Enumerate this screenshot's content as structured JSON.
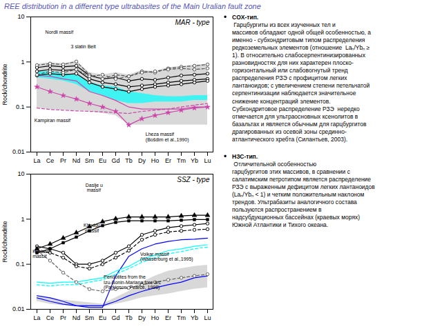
{
  "chart_data": [
    {
      "type": "line",
      "title": "MAR - type",
      "y_label": "Rock/chondrite",
      "categories": [
        "La",
        "Ce",
        "Pr",
        "Nd",
        "Sm",
        "Eu",
        "Gd",
        "Tb",
        "Dy",
        "Ho",
        "Er",
        "Tm",
        "Yb",
        "Lu"
      ],
      "log": "y",
      "ylim": [
        0.01,
        10
      ],
      "yticks": [
        0.01,
        0.1,
        1,
        10
      ],
      "grid": false,
      "annotations": [
        "Nordli massif",
        "3 slatin Belt",
        "Kampiran massif",
        "Lheza massif\n(Bošdim et al.,1990)"
      ],
      "series": [
        {
          "type": "area",
          "color": "#c8c8c8",
          "lower": [
            0.095,
            0.088,
            0.085,
            0.082,
            0.08,
            0.072,
            0.065,
            0.04,
            0.04,
            0.04,
            0.04,
            0.04,
            0.04,
            0.04
          ],
          "upper": [
            0.88,
            0.98,
            0.92,
            1.05,
            0.58,
            0.52,
            0.58,
            0.52,
            0.65,
            0.62,
            0.75,
            0.8,
            0.85,
            0.9
          ]
        },
        {
          "type": "area",
          "color": "cyan",
          "lower": [
            0.45,
            0.42,
            0.38,
            0.32,
            0.22,
            0.18,
            0.14,
            0.12,
            0.12,
            0.13,
            0.13,
            0.13,
            0.14,
            0.14
          ],
          "upper": [
            0.6,
            0.62,
            0.55,
            0.52,
            0.35,
            0.3,
            0.28,
            0.22,
            0.2,
            0.18,
            0.17,
            0.17,
            0.18,
            0.18
          ]
        },
        {
          "type": "line",
          "color": "#cc44aa",
          "line_style": "solid",
          "values": [
            0.5,
            0.48,
            0.42,
            0.38,
            0.22,
            0.18,
            0.14,
            0.1,
            0.09,
            0.09,
            0.09,
            0.09,
            0.1,
            0.1
          ]
        },
        {
          "type": "line",
          "color": "#cc44aa",
          "line_style": "dashed",
          "values": [
            0.095,
            0.088,
            0.085,
            0.082,
            0.08,
            0.078,
            0.075,
            0.072,
            0.08,
            0.085,
            0.09,
            0.1,
            0.11,
            0.12
          ]
        },
        {
          "type": "line",
          "color": "#cc44aa",
          "line_style": "solid",
          "marker": "star",
          "values": [
            0.28,
            0.22,
            0.18,
            0.15,
            0.12,
            0.1,
            0.08,
            0.04,
            0.055,
            0.065,
            0.075,
            0.085,
            0.095,
            0.1
          ]
        },
        {
          "type": "line",
          "color": "black",
          "line_style": "solid",
          "marker": "open_circle",
          "values": [
            0.75,
            0.82,
            0.78,
            0.82,
            0.5,
            0.42,
            0.45,
            0.38,
            0.42,
            0.4,
            0.45,
            0.5,
            0.52,
            0.55
          ]
        },
        {
          "type": "line",
          "color": "black",
          "line_style": "solid",
          "marker": "open_circle",
          "values": [
            0.62,
            0.68,
            0.65,
            0.68,
            0.42,
            0.35,
            0.32,
            0.28,
            0.3,
            0.32,
            0.35,
            0.38,
            0.4,
            0.42
          ]
        },
        {
          "type": "line",
          "color": "black",
          "line_style": "solid",
          "marker": "open_circle",
          "values": [
            0.5,
            0.55,
            0.52,
            0.55,
            0.35,
            0.28,
            0.25,
            0.22,
            0.25,
            0.28,
            0.3,
            0.32,
            0.35,
            0.38
          ]
        },
        {
          "type": "line",
          "color": "#555555",
          "line_style": "dashed",
          "marker": "open_circle",
          "values": [
            0.85,
            0.92,
            0.88,
            1.02,
            0.52,
            0.42,
            0.52,
            0.48,
            0.62,
            0.58,
            0.72,
            0.78,
            0.82,
            0.88
          ]
        },
        {
          "type": "line",
          "color": "#555555",
          "line_style": "dashed",
          "marker": "open_circle",
          "values": [
            0.52,
            0.62,
            0.58,
            0.68,
            0.48,
            0.52,
            0.42,
            0.48,
            0.58,
            0.62,
            0.68,
            0.72,
            0.68,
            0.72
          ]
        }
      ]
    },
    {
      "type": "line",
      "title": "SSZ - type",
      "y_label": "Rock/chondrite",
      "categories": [
        "La",
        "Ce",
        "Pr",
        "Nd",
        "Sm",
        "Eu",
        "Gd",
        "Tb",
        "Dy",
        "Ho",
        "Er",
        "Tm",
        "Yb",
        "Lu"
      ],
      "log": "y",
      "ylim": [
        0.01,
        10
      ],
      "yticks": [
        0.01,
        0.1,
        1,
        10
      ],
      "grid": false,
      "annotations": [
        "Daslje u\n massif",
        "Khodgu\n massif",
        "Khabarn\nmassif",
        "Voikar massif\n(Wasserburg et al.,1995)",
        "Peridotites from the\nIzu-Bonin-Mariana fore arc\n(Parkinson, Pearce, 1998)"
      ],
      "series": [
        {
          "type": "area",
          "color": "#c8c8c8",
          "lower": [
            0.015,
            0.013,
            0.012,
            0.012,
            0.011,
            0.011,
            0.013,
            0.015,
            0.018,
            0.02,
            0.022,
            0.025,
            0.028,
            0.03
          ],
          "upper": [
            0.018,
            0.018,
            0.016,
            0.015,
            0.014,
            0.013,
            0.018,
            0.025,
            0.04,
            0.055,
            0.07,
            0.08,
            0.09,
            0.095
          ]
        },
        {
          "type": "line",
          "color": "blue",
          "line_style": "solid",
          "values": [
            0.018,
            0.015,
            0.013,
            0.012,
            0.011,
            0.011,
            0.055,
            0.15,
            0.22,
            0.28,
            0.32,
            0.35,
            0.36,
            0.38
          ]
        },
        {
          "type": "line",
          "color": "blue",
          "line_style": "solid",
          "values": [
            0.02,
            0.018,
            0.015,
            0.012,
            0.012,
            0.012,
            0.015,
            0.02,
            0.025,
            0.03,
            0.035,
            0.04,
            0.05,
            0.055
          ]
        },
        {
          "type": "line",
          "color": "cyan",
          "line_style": "solid",
          "values": [
            0.04,
            0.038,
            0.04,
            0.04,
            0.045,
            0.05,
            0.07,
            0.09,
            0.13,
            0.16,
            0.2,
            0.22,
            0.25,
            0.27
          ]
        },
        {
          "type": "line",
          "color": "cyan",
          "line_style": "dashed",
          "values": [
            0.035,
            0.033,
            0.035,
            0.035,
            0.04,
            0.045,
            0.06,
            0.08,
            0.11,
            0.14,
            0.17,
            0.19,
            0.22,
            0.24
          ]
        },
        {
          "type": "line",
          "color": "#666666",
          "line_style": "dashed",
          "marker": "open_circle",
          "values": [
            0.2,
            0.12,
            0.065,
            0.04,
            0.028,
            0.025,
            0.028,
            0.03,
            0.035,
            0.04,
            0.045,
            0.05,
            0.055,
            0.06
          ]
        },
        {
          "type": "line",
          "color": "black",
          "line_style": "solid",
          "marker": "open_circle",
          "values": [
            0.25,
            0.22,
            0.18,
            0.1,
            0.1,
            0.12,
            0.18,
            0.25,
            0.45,
            0.55,
            0.65,
            0.7,
            0.75,
            0.8
          ]
        },
        {
          "type": "line",
          "color": "black",
          "line_style": "dashed",
          "marker": "open_circle",
          "values": [
            0.2,
            0.18,
            0.14,
            0.09,
            0.08,
            0.1,
            0.14,
            0.2,
            0.35,
            0.45,
            0.52,
            0.55,
            0.58,
            0.6
          ]
        },
        {
          "type": "line",
          "color": "black",
          "line_style": "solid",
          "marker": "triangle",
          "values": [
            0.22,
            0.28,
            0.38,
            0.5,
            0.68,
            0.88,
            1.02,
            1.12,
            1.12,
            1.12,
            1.12,
            1.18,
            1.22,
            1.22
          ]
        },
        {
          "type": "line",
          "color": "black",
          "line_style": "solid",
          "marker": "square",
          "values": [
            0.18,
            0.22,
            0.3,
            0.4,
            0.55,
            0.72,
            0.85,
            0.92,
            0.92,
            0.92,
            0.92,
            0.95,
            0.98,
            0.98
          ]
        }
      ]
    },
    {
      "type": "text",
      "title": "REE distribution  in a different type ultrabasites of the Main Uralian fault zone",
      "color": "#5555bb",
      "annotations": [
        "•",
        "COX-тип.",
        " Гарцбургиты из всех изученных тел и\nмассивов обладают одной общей особенностью, а\nименно - субхондритовым типом распределения\nредкоземельных элементов (отношение  Laₙ/Ybₙ ≥\n1). В относительно слабосерпентинизированных\nразновидностях для них характерен плоско-\nгоризонтальный или слабовогнутый тренд\nраспределения РЗЭ с профицитом легких\nлантаноидов; с увеличением степени петельчатой\nсерпентинизации наблюдается значительное\nснижение концентраций элементов.\nСубхондритовое распределение РЗЭ  нередко\nотмечается для ультраосновных ксенолитов в\nбазальтах и является обычным для гарцбургитов\nдрагированных из осевой зоны срединно-\nатлантического хребта (Силантьев, 2003).",
        "•",
        "НЗС-тип.",
        " Отличительной особенностью\nгарцбургитов этих массивов, в сравнении с\nсалатимским петротипом является распределение\nРЗЭ с выраженным дефицитом легких лантаноидов\n(Laₙ/Ybₙ < 1) и четким положительным наклоном\nтрендов. Ультрабазиты аналогичного состава\nпользуются распространением в\nнадсубдукционных бассейнах (краевых морях)\nЮжной Атлантики и Тихого океана."
      ]
    }
  ]
}
